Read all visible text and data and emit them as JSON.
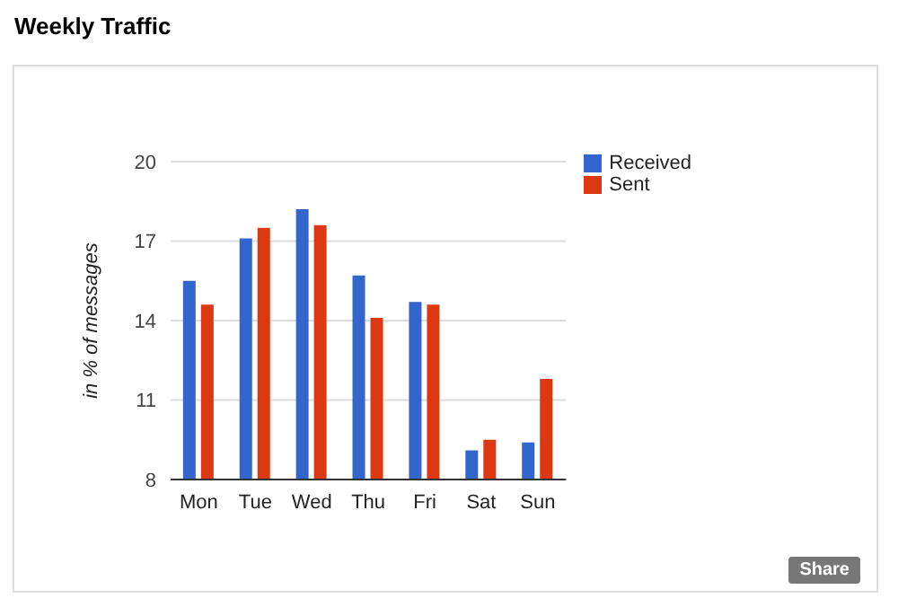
{
  "chart_data": {
    "type": "bar",
    "title": "Weekly Traffic",
    "ylabel": "in % of messages",
    "categories": [
      "Mon",
      "Tue",
      "Wed",
      "Thu",
      "Fri",
      "Sat",
      "Sun"
    ],
    "series": [
      {
        "name": "Received",
        "color": "#3366cc",
        "values": [
          15.5,
          17.1,
          18.2,
          15.7,
          14.7,
          9.1,
          9.4
        ]
      },
      {
        "name": "Sent",
        "color": "#dc3912",
        "values": [
          14.6,
          17.5,
          17.6,
          14.1,
          14.6,
          9.5,
          11.8
        ]
      }
    ],
    "ylim": [
      8,
      20
    ],
    "yticks": [
      8,
      11,
      14,
      17,
      20
    ],
    "grid": "y",
    "legend": "top right",
    "annotations": [
      "Share"
    ]
  }
}
